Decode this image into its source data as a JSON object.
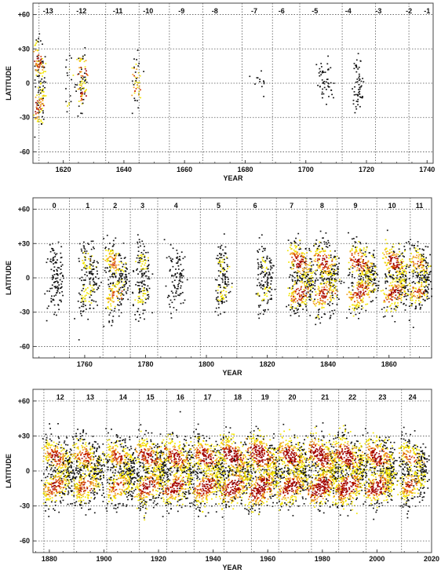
{
  "chart_data": [
    {
      "type": "scatter",
      "xlabel": "YEAR",
      "ylabel": "LATITUDE",
      "xlim": [
        1610,
        1742
      ],
      "ylim": [
        -70,
        70
      ],
      "x_ticks": [
        "1620",
        "1640",
        "1660",
        "1680",
        "1700",
        "1720",
        "1740"
      ],
      "y_ticks": [
        "+60",
        "+30",
        "0",
        "-30",
        "-60"
      ],
      "y_tick_values": [
        60,
        30,
        0,
        -30,
        -60
      ],
      "grid": true,
      "cycle_boundaries": [
        1612,
        1622,
        1634,
        1645,
        1655,
        1666,
        1679,
        1689,
        1698,
        1712,
        1723,
        1734
      ],
      "cycles": [
        {
          "label": "-13",
          "x": 1615
        },
        {
          "label": "-12",
          "x": 1626
        },
        {
          "label": "-11",
          "x": 1638
        },
        {
          "label": "-10",
          "x": 1648
        },
        {
          "label": "-9",
          "x": 1659
        },
        {
          "label": "-8",
          "x": 1670
        },
        {
          "label": "-7",
          "x": 1683
        },
        {
          "label": "-6",
          "x": 1692
        },
        {
          "label": "-5",
          "x": 1703
        },
        {
          "label": "-4",
          "x": 1714
        },
        {
          "label": "-3",
          "x": 1724
        },
        {
          "label": "-2",
          "x": 1734
        },
        {
          "label": "-1",
          "x": 1740
        }
      ],
      "clusters": [
        {
          "x": 1612,
          "width": 2,
          "lat_n": 28,
          "lat_s": -28,
          "density": 90,
          "intensity": 0.6
        },
        {
          "x": 1626,
          "width": 2,
          "lat_n": 18,
          "lat_s": -12,
          "density": 45,
          "intensity": 0.55
        },
        {
          "x": 1622,
          "width": 2,
          "lat_n": 10,
          "lat_s": -25,
          "density": 10,
          "intensity": 0.2
        },
        {
          "x": 1644,
          "width": 1,
          "lat_n": 12,
          "lat_s": -8,
          "density": 25,
          "intensity": 0.45
        },
        {
          "x": 1706,
          "width": 4,
          "lat_n": 6,
          "lat_s": -8,
          "density": 25,
          "intensity": 0.1
        },
        {
          "x": 1717,
          "width": 2,
          "lat_n": 15,
          "lat_s": -15,
          "density": 30,
          "intensity": 0.1
        },
        {
          "x": 1684,
          "width": 4,
          "lat_n": 0,
          "lat_s": -10,
          "density": 6,
          "intensity": 0.05
        }
      ]
    },
    {
      "type": "scatter",
      "xlabel": "YEAR",
      "ylabel": "LATITUDE",
      "xlim": [
        1743,
        1874
      ],
      "ylim": [
        -70,
        70
      ],
      "x_ticks": [
        "1760",
        "1780",
        "1800",
        "1820",
        "1840",
        "1860"
      ],
      "y_ticks": [
        "+60",
        "+30",
        "0",
        "-30",
        "-60"
      ],
      "y_tick_values": [
        60,
        30,
        0,
        -30,
        -60
      ],
      "grid": true,
      "cycle_boundaries": [
        1755,
        1766,
        1775,
        1784,
        1798,
        1810,
        1823,
        1833,
        1843,
        1856,
        1867
      ],
      "cycles": [
        {
          "label": "0",
          "x": 1750
        },
        {
          "label": "1",
          "x": 1761
        },
        {
          "label": "2",
          "x": 1770
        },
        {
          "label": "3",
          "x": 1779
        },
        {
          "label": "4",
          "x": 1790
        },
        {
          "label": "5",
          "x": 1804
        },
        {
          "label": "6",
          "x": 1816
        },
        {
          "label": "7",
          "x": 1828
        },
        {
          "label": "8",
          "x": 1838
        },
        {
          "label": "9",
          "x": 1849
        },
        {
          "label": "10",
          "x": 1861
        },
        {
          "label": "11",
          "x": 1870
        }
      ],
      "clusters": [
        {
          "x": 1750,
          "width": 4,
          "lat_n": 20,
          "lat_s": -20,
          "density": 60,
          "intensity": 0.1
        },
        {
          "x": 1761,
          "width": 5,
          "lat_n": 20,
          "lat_s": -20,
          "density": 90,
          "intensity": 0.25
        },
        {
          "x": 1770,
          "width": 6,
          "lat_n": 20,
          "lat_s": -20,
          "density": 140,
          "intensity": 0.45
        },
        {
          "x": 1779,
          "width": 4,
          "lat_n": 20,
          "lat_s": -20,
          "density": 80,
          "intensity": 0.2
        },
        {
          "x": 1790,
          "width": 5,
          "lat_n": 18,
          "lat_s": -18,
          "density": 50,
          "intensity": 0.05
        },
        {
          "x": 1805,
          "width": 3,
          "lat_n": 18,
          "lat_s": -18,
          "density": 70,
          "intensity": 0.25
        },
        {
          "x": 1819,
          "width": 4,
          "lat_n": 18,
          "lat_s": -18,
          "density": 70,
          "intensity": 0.2
        },
        {
          "x": 1831,
          "width": 7,
          "lat_n": 20,
          "lat_s": -18,
          "density": 200,
          "intensity": 0.6
        },
        {
          "x": 1839,
          "width": 7,
          "lat_n": 20,
          "lat_s": -20,
          "density": 200,
          "intensity": 0.6
        },
        {
          "x": 1851,
          "width": 8,
          "lat_n": 20,
          "lat_s": -18,
          "density": 220,
          "intensity": 0.65
        },
        {
          "x": 1862,
          "width": 7,
          "lat_n": 20,
          "lat_s": -18,
          "density": 200,
          "intensity": 0.65
        },
        {
          "x": 1870,
          "width": 6,
          "lat_n": 18,
          "lat_s": -16,
          "density": 150,
          "intensity": 0.45
        }
      ]
    },
    {
      "type": "scatter",
      "xlabel": "YEAR",
      "ylabel": "LATITUDE",
      "xlim": [
        1874,
        2020
      ],
      "ylim": [
        -70,
        70
      ],
      "x_ticks": [
        "1880",
        "1900",
        "1920",
        "1940",
        "1960",
        "1980",
        "2000",
        "2020"
      ],
      "y_ticks": [
        "+60",
        "+30",
        "0",
        "-30",
        "-60"
      ],
      "y_tick_values": [
        60,
        30,
        0,
        -30,
        -60
      ],
      "grid": true,
      "cycle_boundaries": [
        1878,
        1889,
        1901,
        1913,
        1923,
        1933,
        1944,
        1954,
        1964,
        1976,
        1986,
        1996,
        2009
      ],
      "cycles": [
        {
          "label": "12",
          "x": 1884
        },
        {
          "label": "13",
          "x": 1895
        },
        {
          "label": "14",
          "x": 1907
        },
        {
          "label": "15",
          "x": 1917
        },
        {
          "label": "16",
          "x": 1928
        },
        {
          "label": "17",
          "x": 1938
        },
        {
          "label": "18",
          "x": 1949
        },
        {
          "label": "19",
          "x": 1959
        },
        {
          "label": "20",
          "x": 1969
        },
        {
          "label": "21",
          "x": 1981
        },
        {
          "label": "22",
          "x": 1991
        },
        {
          "label": "23",
          "x": 2002
        },
        {
          "label": "24",
          "x": 2013
        }
      ],
      "clusters": [
        {
          "x": 1883,
          "width": 10,
          "lat_n": 18,
          "lat_s": -18,
          "density": 260,
          "intensity": 0.55
        },
        {
          "x": 1894,
          "width": 10,
          "lat_n": 18,
          "lat_s": -18,
          "density": 260,
          "intensity": 0.55
        },
        {
          "x": 1906,
          "width": 10,
          "lat_n": 18,
          "lat_s": -18,
          "density": 250,
          "intensity": 0.5
        },
        {
          "x": 1917,
          "width": 10,
          "lat_n": 18,
          "lat_s": -18,
          "density": 280,
          "intensity": 0.65
        },
        {
          "x": 1927,
          "width": 10,
          "lat_n": 18,
          "lat_s": -18,
          "density": 280,
          "intensity": 0.65
        },
        {
          "x": 1938,
          "width": 10,
          "lat_n": 18,
          "lat_s": -18,
          "density": 280,
          "intensity": 0.7
        },
        {
          "x": 1948,
          "width": 10,
          "lat_n": 18,
          "lat_s": -18,
          "density": 300,
          "intensity": 0.8
        },
        {
          "x": 1958,
          "width": 10,
          "lat_n": 20,
          "lat_s": -20,
          "density": 320,
          "intensity": 0.9
        },
        {
          "x": 1969,
          "width": 10,
          "lat_n": 18,
          "lat_s": -18,
          "density": 300,
          "intensity": 0.75
        },
        {
          "x": 1980,
          "width": 10,
          "lat_n": 19,
          "lat_s": -19,
          "density": 320,
          "intensity": 0.85
        },
        {
          "x": 1990,
          "width": 10,
          "lat_n": 19,
          "lat_s": -19,
          "density": 320,
          "intensity": 0.85
        },
        {
          "x": 2001,
          "width": 10,
          "lat_n": 18,
          "lat_s": -18,
          "density": 290,
          "intensity": 0.7
        },
        {
          "x": 2013,
          "width": 9,
          "lat_n": 16,
          "lat_s": -16,
          "density": 220,
          "intensity": 0.5
        }
      ]
    }
  ],
  "colors": {
    "low": "#111111",
    "light": "#f2e400",
    "mid": "#f0a020",
    "high": "#d03000",
    "peak": "#a00000",
    "grid": "#555555",
    "frame": "#444444"
  }
}
